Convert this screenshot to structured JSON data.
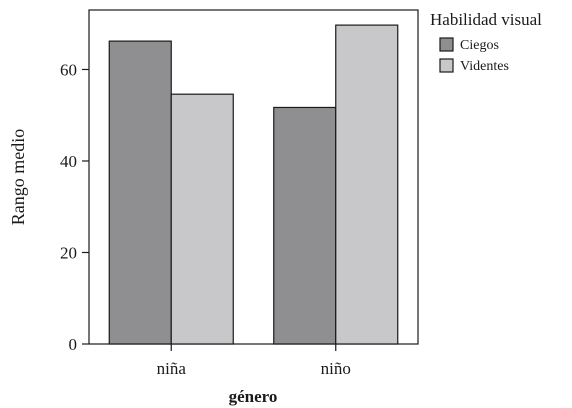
{
  "chart_data": {
    "type": "bar",
    "title": "",
    "xlabel": "género",
    "ylabel": "Rango medio",
    "categories": [
      "niña",
      "niño"
    ],
    "series": [
      {
        "name": "Ciegos",
        "values": [
          66.2,
          51.7
        ],
        "color": "#8f8f92"
      },
      {
        "name": "Videntes",
        "values": [
          54.6,
          69.7
        ],
        "color": "#c8c8ca"
      }
    ],
    "ylim": [
      0,
      73
    ],
    "yticks": [
      0,
      20,
      40,
      60
    ],
    "grid": false,
    "legend": {
      "title": "Habilidad visual",
      "placement": "right"
    }
  }
}
